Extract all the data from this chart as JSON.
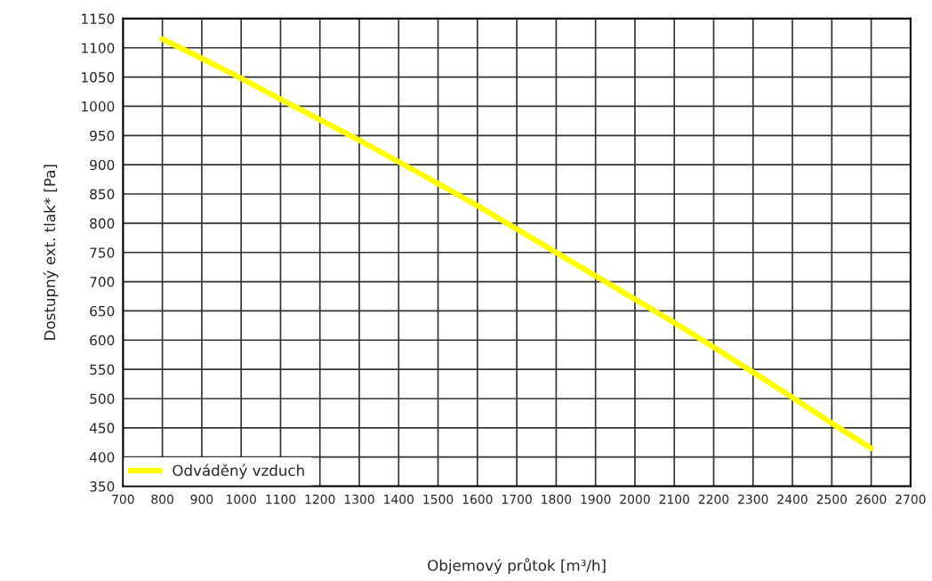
{
  "chart_data": {
    "type": "line",
    "xlabel": "Objemový průtok [m³/h]",
    "ylabel": "Dostupný ext. tlak* [Pa]",
    "x": [
      800,
      900,
      1000,
      1100,
      1200,
      1300,
      1400,
      1500,
      1600,
      1700,
      1800,
      1900,
      2000,
      2100,
      2200,
      2300,
      2400,
      2500,
      2600
    ],
    "series": [
      {
        "name": "Odváděný vzduch",
        "color": "#ffff00",
        "values": [
          1115,
          1082,
          1048,
          1012,
          977,
          942,
          905,
          868,
          830,
          790,
          750,
          710,
          670,
          630,
          588,
          545,
          502,
          458,
          415
        ]
      }
    ],
    "xlim": [
      700,
      2700
    ],
    "xticks": [
      700,
      800,
      900,
      1000,
      1100,
      1200,
      1300,
      1400,
      1500,
      1600,
      1700,
      1800,
      1900,
      2000,
      2100,
      2200,
      2300,
      2400,
      2500,
      2600,
      2700
    ],
    "ylim": [
      350,
      1150
    ],
    "yticks": [
      350,
      400,
      450,
      500,
      550,
      600,
      650,
      700,
      750,
      800,
      850,
      900,
      950,
      1000,
      1050,
      1100,
      1150
    ],
    "grid": true,
    "legend": "bottom left",
    "marker": "none",
    "line_style": "solid"
  }
}
